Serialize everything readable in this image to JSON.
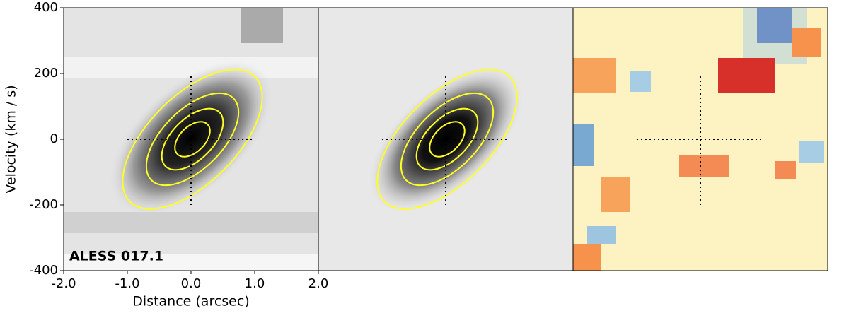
{
  "chart_data": {
    "type": "pv-diagram",
    "annotation": "ALESS 017.1",
    "xlabel": "Distance (arcsec)",
    "ylabel": "Velocity (km / s)",
    "xlim": [
      -2,
      2
    ],
    "ylim": [
      -400,
      400
    ],
    "xticks": [
      {
        "value": -2,
        "label": "-2.0"
      },
      {
        "value": -1,
        "label": "-1.0"
      },
      {
        "value": 0,
        "label": "0.0"
      },
      {
        "value": 1,
        "label": "1.0"
      },
      {
        "value": 2,
        "label": "2.0"
      }
    ],
    "yticks": [
      -400,
      -200,
      0,
      200,
      400
    ],
    "crosshair": {
      "x": [
        -1,
        1
      ],
      "y": [
        -200,
        200
      ]
    }
  }
}
